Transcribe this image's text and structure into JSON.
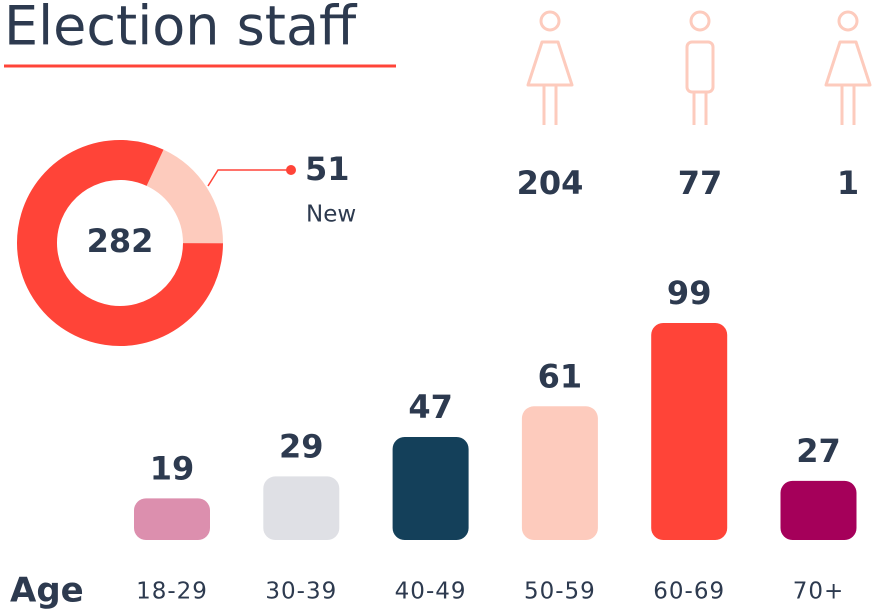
{
  "title": "Election staff",
  "chart_data": [
    {
      "type": "donut",
      "total": 282,
      "categories": [
        "New",
        null
      ],
      "values": [
        51,
        231
      ],
      "value_labels": [
        "51",
        null
      ],
      "colors": [
        "#fdcbbd",
        "#ff4438"
      ]
    },
    {
      "type": "pictogram",
      "values": [
        204,
        77,
        1
      ],
      "color": "#fdcbbd"
    },
    {
      "type": "bar",
      "x_label": "Age",
      "categories": [
        "18-29",
        "30-39",
        "40-49",
        "50-59",
        "60-69",
        "70+"
      ],
      "values": [
        19,
        29,
        47,
        61,
        99,
        27
      ],
      "colors": [
        "#dc8fae",
        "#dfe0e5",
        "#14405a",
        "#fdcbbd",
        "#ff4438",
        "#a5005a"
      ]
    }
  ]
}
